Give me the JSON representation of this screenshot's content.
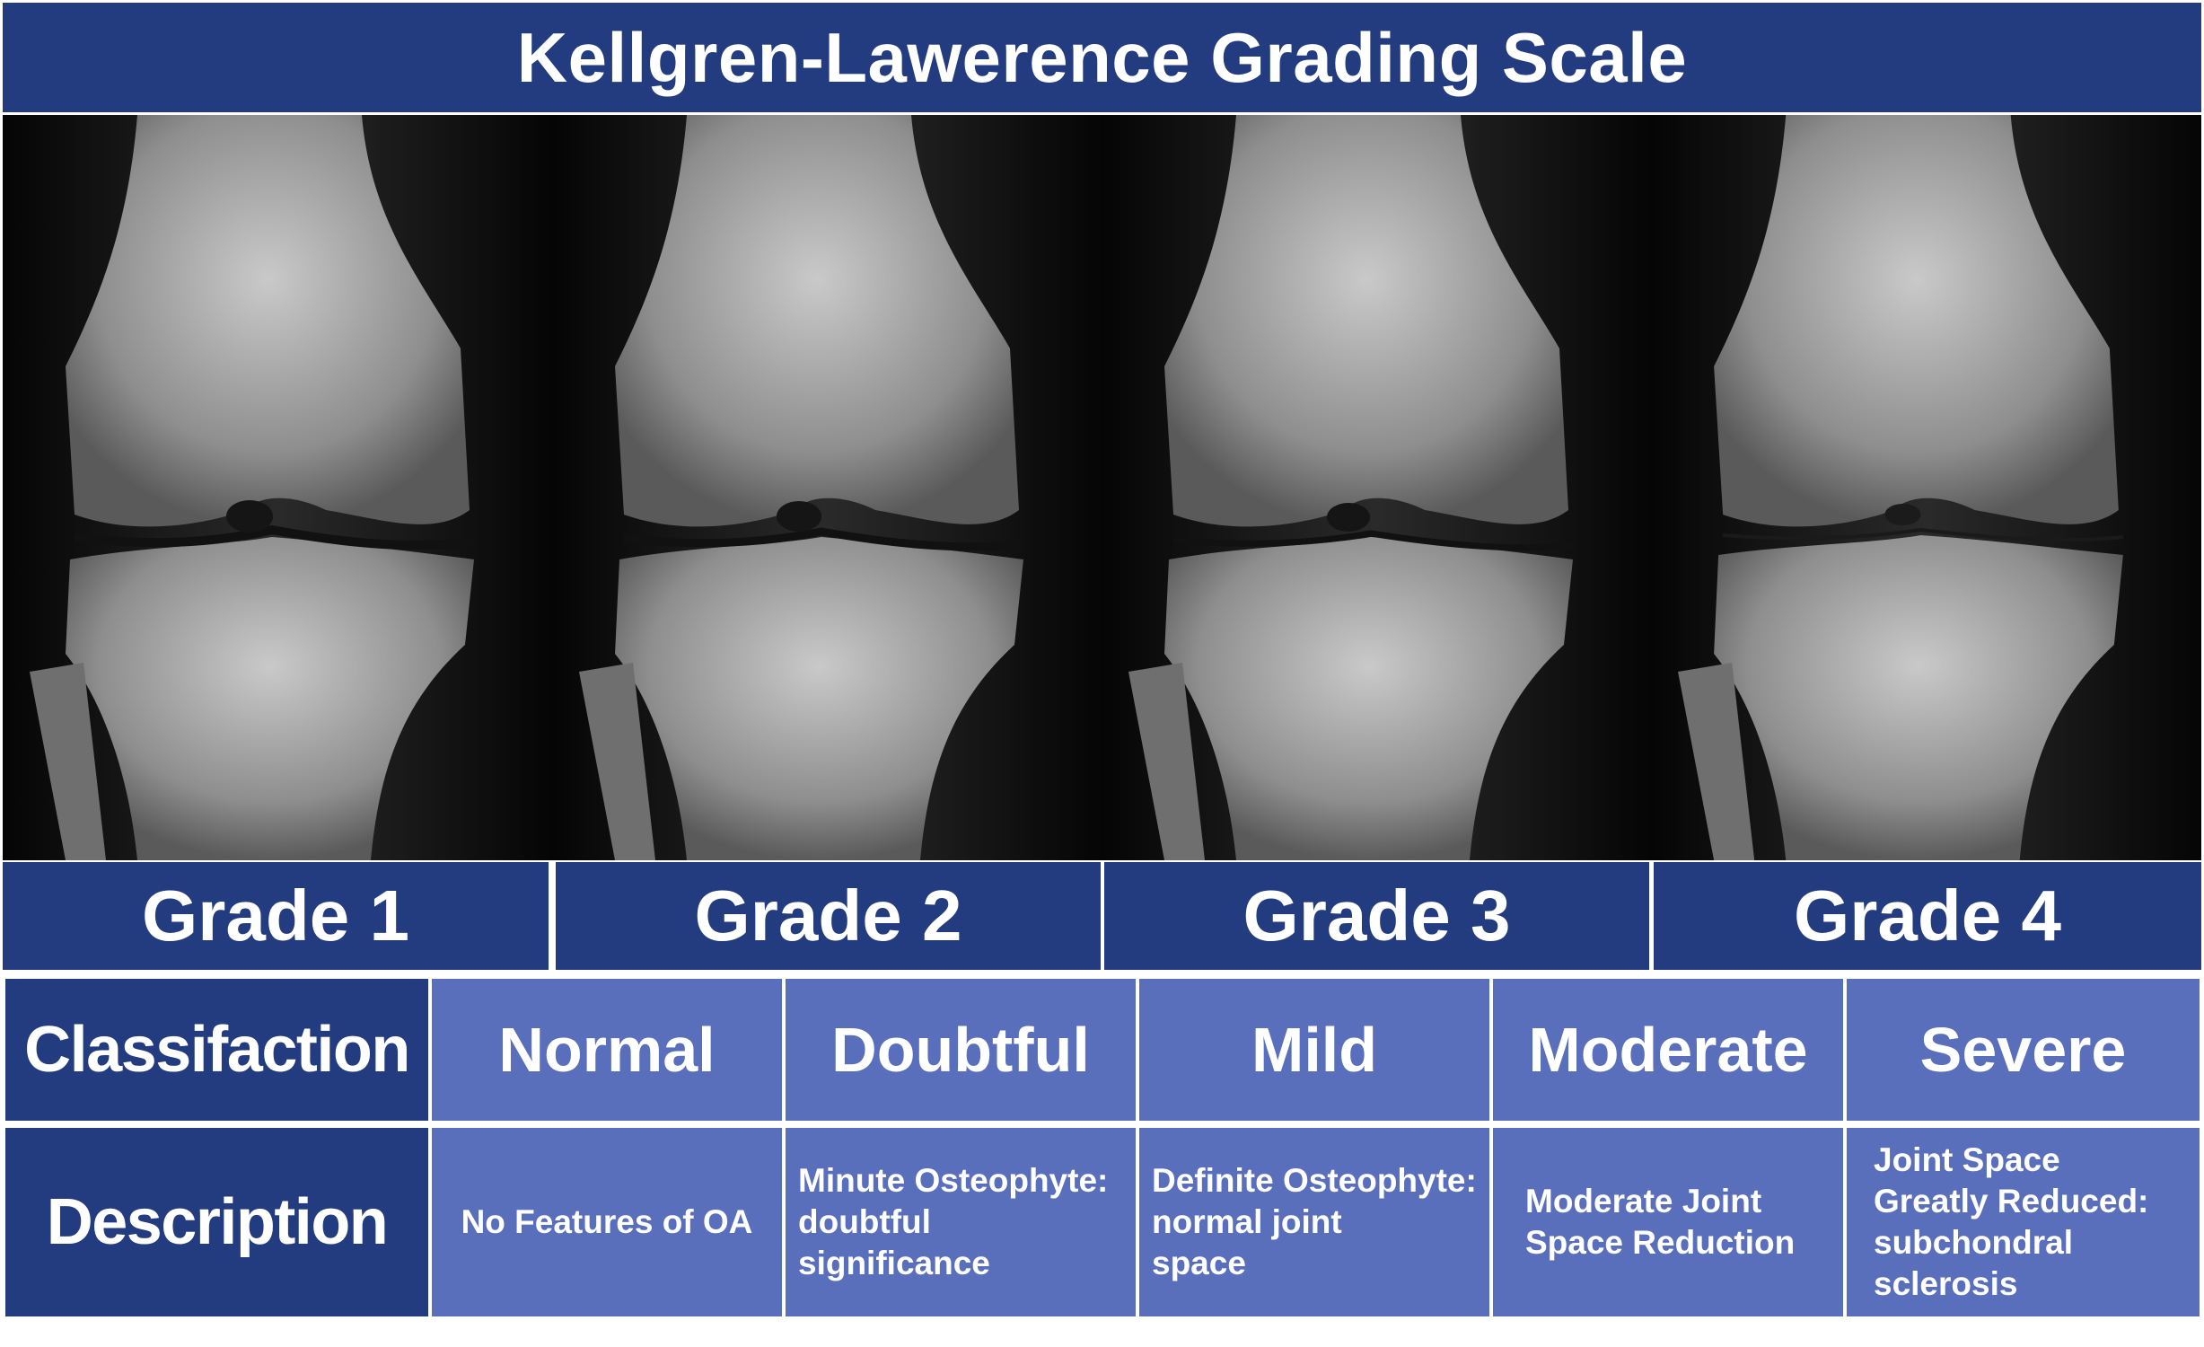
{
  "title": "Kellgren-Lawerence Grading Scale",
  "grades": [
    {
      "label": "Grade 1"
    },
    {
      "label": "Grade 2"
    },
    {
      "label": "Grade 3"
    },
    {
      "label": "Grade 4"
    }
  ],
  "table": {
    "classification_header": "Classifaction",
    "description_header": "Description",
    "classifications": [
      "Normal",
      "Doubtful",
      "Mild",
      "Moderate",
      "Severe"
    ],
    "descriptions": [
      "No Features of OA",
      "Minute Osteophyte:\ndoubtful\nsignificance",
      "Definite Osteophyte:\nnormal joint\nspace",
      "Moderate Joint\nSpace Reduction",
      "Joint Space\nGreatly Reduced:\nsubchondral\nsclerosis"
    ]
  },
  "colors": {
    "header_dark_blue": "#233C80",
    "cell_medium_blue": "#5A6FBB",
    "text": "#FFFFFF",
    "xray_background": "#111111"
  }
}
